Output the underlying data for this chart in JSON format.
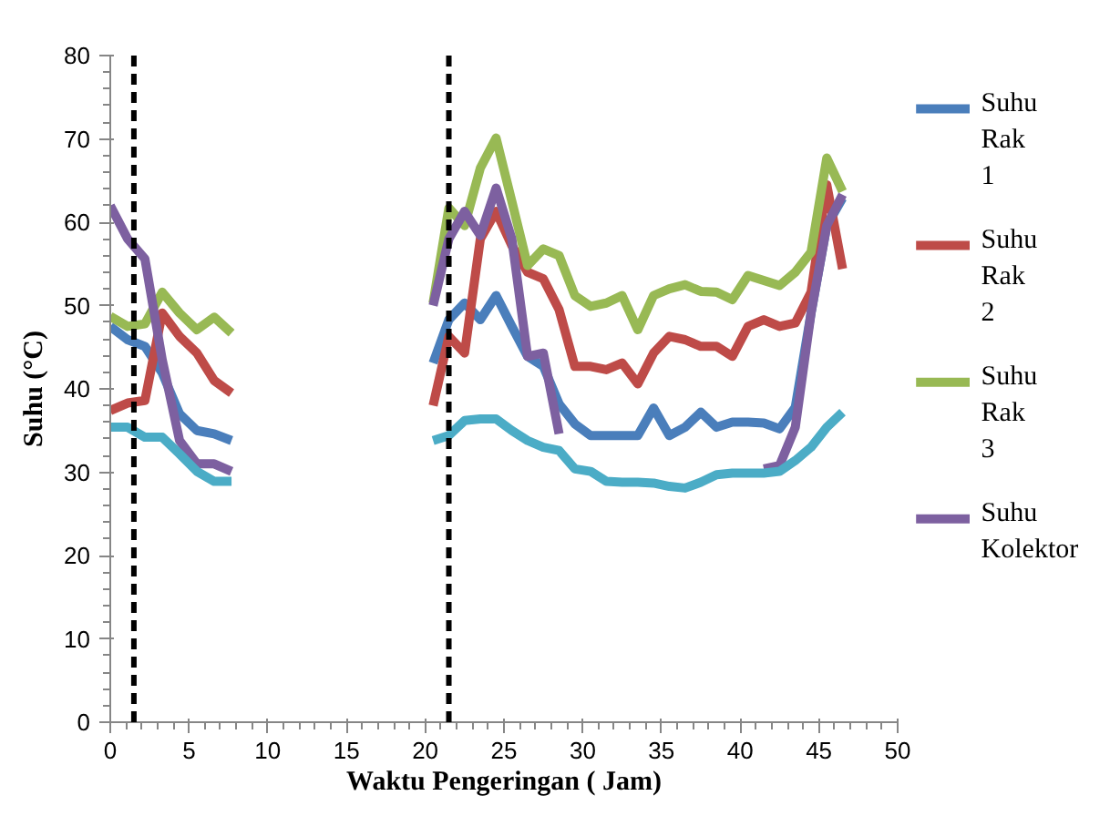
{
  "chart_data": {
    "type": "line",
    "xlabel": "Waktu Pengeringan ( Jam)",
    "ylabel": "Suhu (°C)",
    "x": [
      0,
      1.1,
      2.2,
      3.3,
      4.4,
      5.5,
      6.6,
      7.7,
      14,
      20.5,
      21.5,
      22.5,
      23.5,
      24.5,
      25.5,
      26.5,
      27.5,
      28.5,
      29.5,
      30.5,
      31.5,
      32.5,
      33.5,
      34.5,
      35.5,
      36.5,
      37.5,
      38.5,
      39.5,
      40.5,
      41.5,
      42.5,
      43.5,
      44.5,
      45.5,
      46.5
    ],
    "xlim": [
      0,
      50
    ],
    "xticks": [
      0,
      5,
      10,
      15,
      20,
      25,
      30,
      35,
      40,
      45,
      50
    ],
    "ylim": [
      0,
      80
    ],
    "yticks": [
      0,
      10,
      20,
      30,
      40,
      50,
      60,
      70,
      80
    ],
    "grid": false,
    "legend": "right",
    "marker": "none",
    "line_style": "solid",
    "series": [
      {
        "name": "Suhu Rak 1",
        "color": "#4a7ebb",
        "values": [
          47.5,
          45.9,
          45.1,
          41.9,
          37,
          35,
          34.6,
          33.8,
          null,
          43.1,
          48.3,
          50.3,
          48.3,
          51.2,
          47.5,
          43.9,
          42.7,
          38.2,
          35.8,
          34.4,
          34.4,
          34.4,
          34.4,
          37.7,
          34.4,
          35.4,
          37.2,
          35.4,
          36,
          36,
          35.9,
          35.2,
          37.8,
          49.1,
          59.6,
          62.9
        ]
      },
      {
        "name": "Suhu Rak 2",
        "color": "#be4b48",
        "values": [
          37.4,
          38.3,
          38.6,
          49.1,
          46.3,
          44.3,
          41,
          39.5,
          null,
          38,
          46.3,
          44.3,
          58,
          61.3,
          57.2,
          54,
          53.2,
          49.5,
          42.7,
          42.7,
          42.3,
          43.1,
          40.6,
          44.3,
          46.3,
          45.9,
          45.1,
          45.1,
          43.9,
          47.5,
          48.3,
          47.5,
          47.9,
          51.6,
          64.5,
          54.4
        ]
      },
      {
        "name": "Suhu Rak 3",
        "color": "#98b954",
        "values": [
          48.7,
          47.5,
          47.8,
          51.6,
          49.1,
          47.1,
          48.6,
          46.7,
          null,
          50.3,
          61.7,
          59.6,
          66.5,
          70.1,
          62.5,
          54.8,
          56.8,
          56,
          51.2,
          49.9,
          50.3,
          51.2,
          47.1,
          51.2,
          52,
          52.5,
          51.7,
          51.6,
          50.7,
          53.6,
          53,
          52.4,
          54,
          56.4,
          67.7,
          63.7
        ]
      },
      {
        "name": "Suhu Kolektor",
        "color": "#7d60a0",
        "values": [
          62,
          58,
          55.6,
          43.5,
          33.8,
          31,
          31,
          30.1,
          null,
          50,
          58,
          61.3,
          58.4,
          64.1,
          58,
          43.9,
          44.3,
          34.6,
          null,
          null,
          null,
          null,
          null,
          null,
          null,
          null,
          null,
          null,
          null,
          null,
          30.4,
          30.8,
          35.4,
          49.1,
          59.6,
          63.3
        ]
      },
      {
        "color": "#4bacc6",
        "values": [
          35.4,
          35.4,
          34.2,
          34.2,
          32.2,
          30.1,
          28.9,
          28.9,
          null,
          33.8,
          34.4,
          36.2,
          36.4,
          36.4,
          35,
          33.8,
          33,
          32.6,
          30.4,
          30.1,
          28.9,
          28.8,
          28.8,
          28.7,
          28.3,
          28.1,
          28.8,
          29.7,
          29.9,
          29.9,
          29.9,
          30.1,
          31.4,
          33,
          35.4,
          37.2
        ]
      }
    ],
    "ref_lines": [
      {
        "axis": "x",
        "value": 1.5,
        "color": "#000000",
        "line_style": "dashed"
      },
      {
        "axis": "x",
        "value": 21.5,
        "color": "#000000",
        "line_style": "dashed"
      }
    ]
  }
}
